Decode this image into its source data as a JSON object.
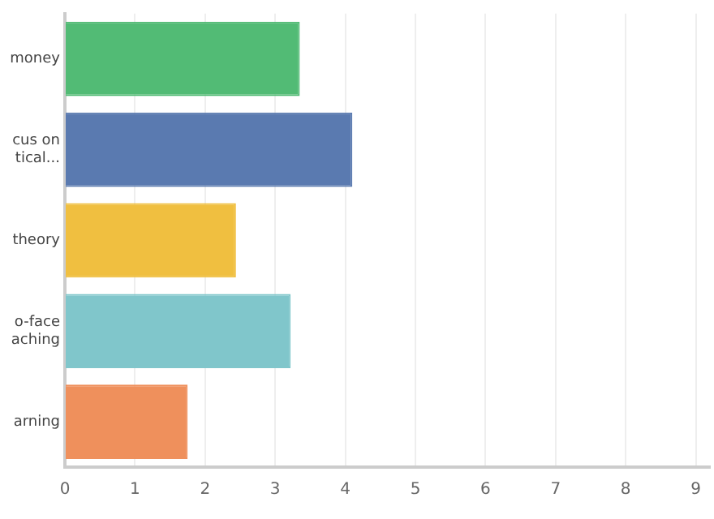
{
  "chart_data": {
    "type": "bar",
    "orientation": "horizontal",
    "categories": [
      "money",
      "cus on\ntical...",
      "theory",
      "o-face\naching",
      "arning"
    ],
    "values": [
      3.35,
      4.1,
      2.44,
      3.22,
      1.75
    ],
    "colors": [
      "#52bb75",
      "#5a7ab0",
      "#f0bf40",
      "#80c6cb",
      "#ef905c"
    ],
    "xlim": [
      0,
      9.2
    ],
    "xticks": [
      0,
      1,
      2,
      3,
      4,
      5,
      6,
      7,
      8,
      9
    ],
    "grid": "x"
  }
}
